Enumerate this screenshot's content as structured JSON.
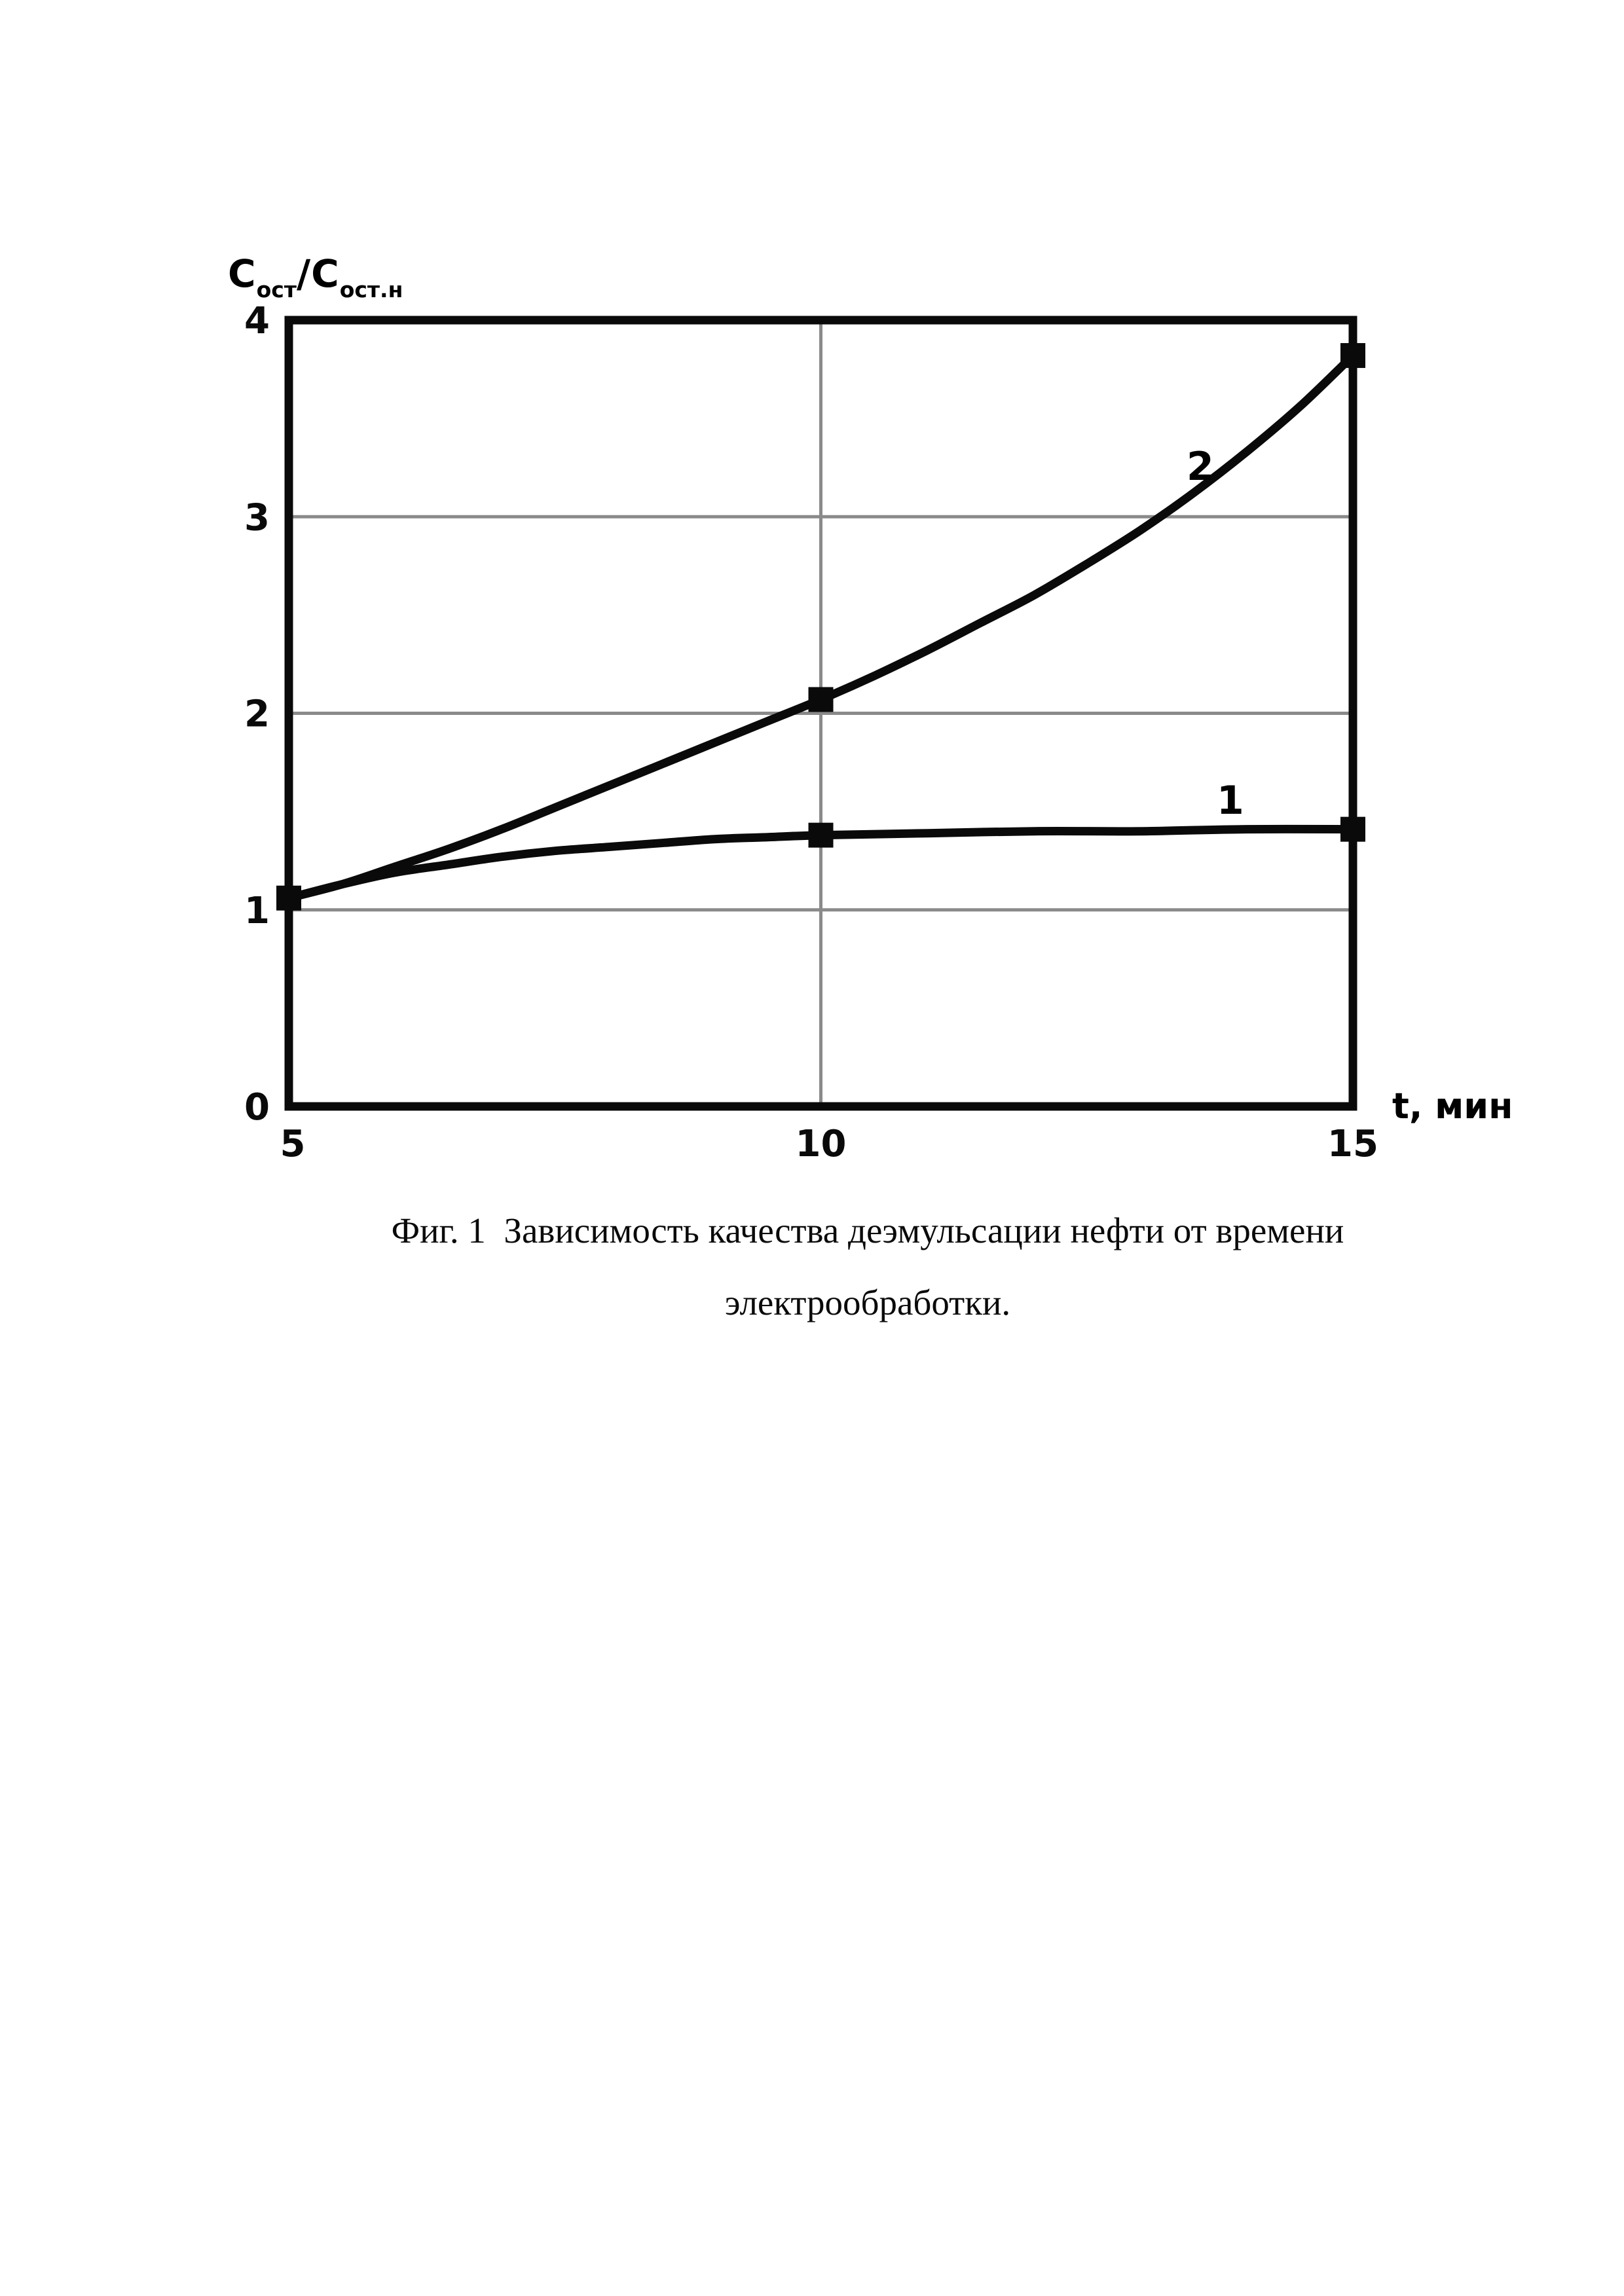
{
  "colors": {
    "ink": "#0a0a0a",
    "grid": "#8a8a8a",
    "paper": "#ffffff"
  },
  "chart_data": {
    "type": "line",
    "title": "",
    "xlabel": "t, мин",
    "ylabel": "Cост/Cост.н",
    "ylabel_parts": {
      "base1": "C",
      "sub1": "ост",
      "base2": "/C",
      "sub2": "ост.н"
    },
    "xlim": [
      5,
      15
    ],
    "ylim": [
      0,
      4
    ],
    "x_ticks": [
      "5",
      "10",
      "15"
    ],
    "x_tick_values": [
      5,
      10,
      15
    ],
    "y_ticks": [
      "0",
      "1",
      "2",
      "3",
      "4"
    ],
    "y_tick_values": [
      0,
      1,
      2,
      3,
      4
    ],
    "grid": {
      "horizontal_at": [
        1,
        2,
        3
      ],
      "vertical_at": [
        10
      ],
      "frame": true
    },
    "legend_position": "inline-labels",
    "series": [
      {
        "name": "1",
        "points": [
          [
            5,
            1.06
          ],
          [
            5.5,
            1.13
          ],
          [
            6,
            1.19
          ],
          [
            6.5,
            1.23
          ],
          [
            7,
            1.27
          ],
          [
            7.5,
            1.3
          ],
          [
            8,
            1.32
          ],
          [
            8.5,
            1.34
          ],
          [
            9,
            1.36
          ],
          [
            9.5,
            1.37
          ],
          [
            10,
            1.38
          ],
          [
            11,
            1.39
          ],
          [
            12,
            1.4
          ],
          [
            13,
            1.4
          ],
          [
            14,
            1.41
          ],
          [
            15,
            1.41
          ]
        ],
        "markers": [
          [
            5,
            1.06
          ],
          [
            10,
            1.38
          ],
          [
            15,
            1.41
          ]
        ]
      },
      {
        "name": "2",
        "points": [
          [
            5,
            1.06
          ],
          [
            5.5,
            1.13
          ],
          [
            6,
            1.22
          ],
          [
            6.5,
            1.31
          ],
          [
            7,
            1.41
          ],
          [
            7.5,
            1.52
          ],
          [
            8,
            1.63
          ],
          [
            8.5,
            1.74
          ],
          [
            9,
            1.85
          ],
          [
            9.5,
            1.96
          ],
          [
            10,
            2.07
          ],
          [
            10.5,
            2.19
          ],
          [
            11,
            2.32
          ],
          [
            11.5,
            2.46
          ],
          [
            12,
            2.6
          ],
          [
            12.5,
            2.76
          ],
          [
            13,
            2.93
          ],
          [
            13.5,
            3.12
          ],
          [
            14,
            3.33
          ],
          [
            14.5,
            3.56
          ],
          [
            15,
            3.82
          ]
        ],
        "markers": [
          [
            10,
            2.07
          ],
          [
            15,
            3.82
          ]
        ]
      }
    ]
  },
  "caption": {
    "line1": "Фиг. 1  Зависимость качества деэмульсации нефти от времени",
    "line2": "электрообработки."
  }
}
